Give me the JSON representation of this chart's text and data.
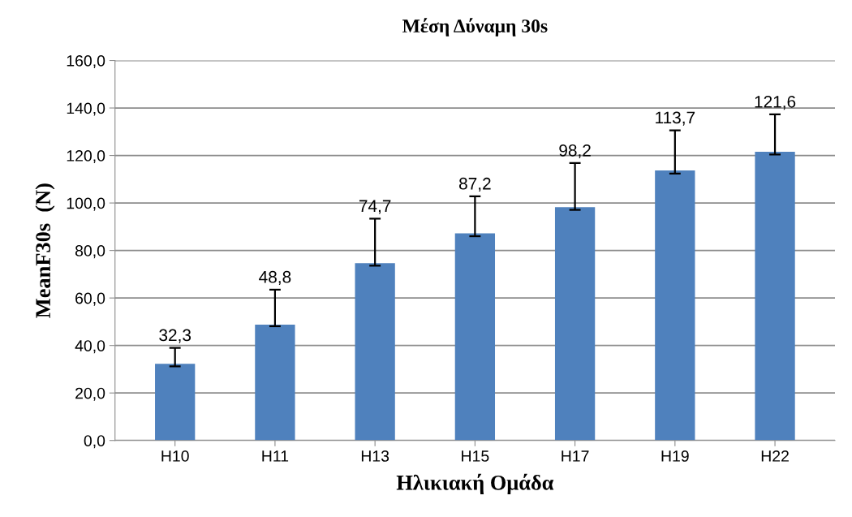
{
  "chart_data": {
    "type": "bar",
    "title": "Μέση Δύναμη 30s",
    "xlabel": "Ηλικιακή Ομάδα",
    "ylabel": "MeanF30s  (N)",
    "categories": [
      "H10",
      "H11",
      "H13",
      "H15",
      "H17",
      "H19",
      "H22"
    ],
    "values": [
      32.3,
      48.8,
      74.7,
      87.2,
      98.2,
      113.7,
      121.6
    ],
    "value_labels": [
      "32,3",
      "48,8",
      "74,7",
      "87,2",
      "98,2",
      "113,7",
      "121,6"
    ],
    "errors": [
      [
        31.2,
        39.0
      ],
      [
        48.1,
        63.5
      ],
      [
        73.6,
        93.4
      ],
      [
        86.0,
        102.8
      ],
      [
        97.1,
        116.8
      ],
      [
        112.4,
        130.6
      ],
      [
        120.4,
        137.3
      ]
    ],
    "color": "#4f81bd",
    "ylim": [
      0,
      160
    ],
    "yticks": [
      {
        "value": 0,
        "label": "0,0"
      },
      {
        "value": 20,
        "label": "20,0"
      },
      {
        "value": 40,
        "label": "40,0"
      },
      {
        "value": 60,
        "label": "60,0"
      },
      {
        "value": 80,
        "label": "80,0"
      },
      {
        "value": 100,
        "label": "100,0"
      },
      {
        "value": 120,
        "label": "120,0"
      },
      {
        "value": 140,
        "label": "140,0"
      },
      {
        "value": 160,
        "label": "160,0"
      }
    ],
    "grid": "y",
    "legend": false
  }
}
